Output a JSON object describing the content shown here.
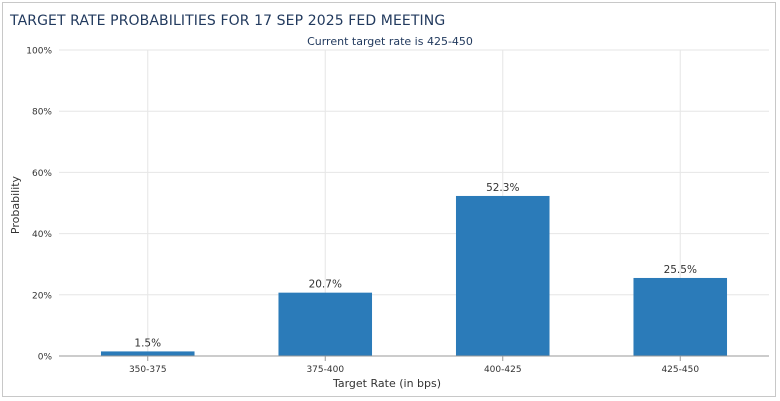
{
  "title": "TARGET RATE PROBABILITIES FOR 17 SEP 2025 FED MEETING",
  "chart_data": {
    "type": "bar",
    "title": "TARGET RATE PROBABILITIES FOR 17 SEP 2025 FED MEETING",
    "subtitle": "Current target rate is 425-450",
    "categories": [
      "350-375",
      "375-400",
      "400-425",
      "425-450"
    ],
    "values": [
      1.5,
      20.7,
      52.3,
      25.5
    ],
    "data_labels": [
      "1.5%",
      "20.7%",
      "52.3%",
      "25.5%"
    ],
    "xlabel": "Target Rate (in bps)",
    "ylabel": "Probability",
    "ylim": [
      0,
      100
    ],
    "yticks": [
      0,
      20,
      40,
      60,
      80,
      100
    ],
    "ytick_labels": [
      "0%",
      "20%",
      "40%",
      "60%",
      "80%",
      "100%"
    ],
    "grid": true,
    "legend": "none",
    "bar_color": "#2b7bb9",
    "gridline_color": "#e6e6e6",
    "text_color": "#333333",
    "title_color": "#223a5e"
  }
}
